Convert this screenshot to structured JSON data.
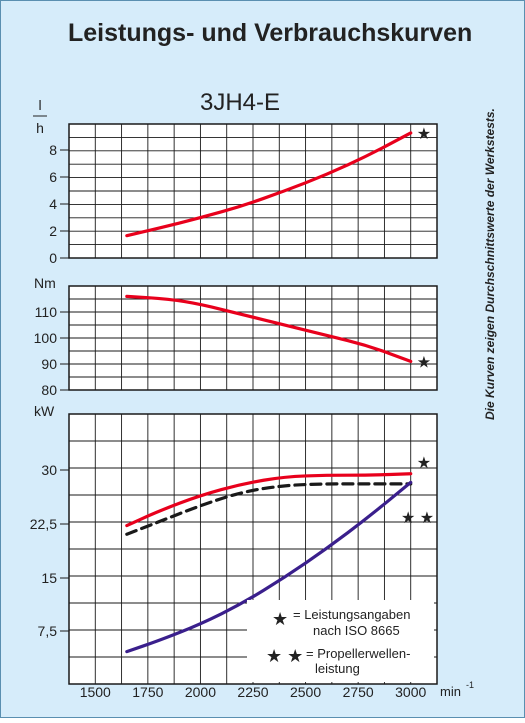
{
  "page": {
    "title": "Leistungs- und Verbrauchskurven",
    "subtitle": "3JH4-E",
    "side_note": "Die Kurven zeigen Durchschnittswerte der Werkstests.",
    "x_unit": "min",
    "x_unit_exp": "-1",
    "legend": {
      "single_star": "★",
      "single_text_1": "= Leistungsangaben",
      "single_text_2": "nach ISO 8665",
      "double_star": "★ ★",
      "double_text_1": "= Propellerwellen-",
      "double_text_2": "leistung"
    },
    "colors": {
      "background": "#d6ecfa",
      "border": "#5a8fb0",
      "red": "#e8001c",
      "navy": "#3a1f8c",
      "black": "#1a1a1a"
    }
  },
  "chart_data": [
    {
      "type": "line",
      "ylabel_num": "l",
      "ylabel_den": "h",
      "ylim": [
        0,
        9
      ],
      "yticks": [
        "0",
        "2",
        "4",
        "6",
        "8"
      ],
      "xlim": [
        1375,
        3125
      ],
      "xticks": [
        "1500",
        "1750",
        "2000",
        "2250",
        "2500",
        "2750",
        "3000"
      ],
      "series": [
        {
          "color": "#e8001c",
          "x": [
            1650,
            1800,
            2000,
            2200,
            2400,
            2600,
            2800,
            3000
          ],
          "y": [
            1.5,
            2.0,
            2.7,
            3.5,
            4.5,
            5.6,
            6.9,
            8.4
          ]
        }
      ],
      "markers": [
        {
          "text": "★",
          "x": 3000,
          "y": 8.4
        }
      ]
    },
    {
      "type": "line",
      "ylabel": "Nm",
      "ylim": [
        80,
        120
      ],
      "yticks": [
        "80",
        "90",
        "100",
        "110"
      ],
      "xlim": [
        1375,
        3125
      ],
      "series": [
        {
          "color": "#e8001c",
          "x": [
            1650,
            1850,
            2000,
            2200,
            2400,
            2600,
            2800,
            3000
          ],
          "y": [
            116,
            115,
            113,
            109,
            105,
            101,
            97,
            91
          ]
        }
      ],
      "markers": [
        {
          "text": "★",
          "x": 3000,
          "y": 91
        }
      ]
    },
    {
      "type": "line",
      "ylabel": "kW",
      "ylim": [
        0,
        37.5
      ],
      "yticks": [
        "7,5",
        "15",
        "22,5",
        "30"
      ],
      "xlim": [
        1375,
        3125
      ],
      "xticks": [
        "1500",
        "1750",
        "2000",
        "2250",
        "2500",
        "2750",
        "3000"
      ],
      "series": [
        {
          "color": "#e8001c",
          "dash": false,
          "x": [
            1650,
            1800,
            2000,
            2200,
            2400,
            2600,
            2800,
            3000
          ],
          "y": [
            22.0,
            24.0,
            26.2,
            27.8,
            28.8,
            29.0,
            29.0,
            29.2
          ]
        },
        {
          "color": "#1a1a1a",
          "dash": true,
          "x": [
            1650,
            1800,
            2000,
            2200,
            2400,
            2600,
            2800,
            3000
          ],
          "y": [
            20.8,
            22.5,
            24.8,
            26.7,
            27.6,
            27.8,
            27.8,
            27.8
          ]
        },
        {
          "color": "#3a1f8c",
          "dash": false,
          "x": [
            1650,
            1800,
            2000,
            2200,
            2400,
            2600,
            2800,
            3000
          ],
          "y": [
            4.5,
            6.0,
            8.3,
            11.2,
            14.8,
            18.8,
            23.2,
            28.0
          ]
        }
      ],
      "markers": [
        {
          "text": "★",
          "x": 3000,
          "y": 30.8
        },
        {
          "text": "★ ★",
          "x": 2925,
          "y": 23.2
        }
      ]
    }
  ]
}
